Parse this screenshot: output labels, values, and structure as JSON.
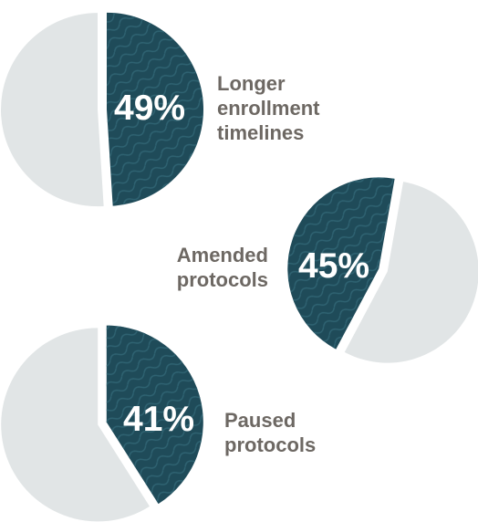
{
  "chart_data": {
    "type": "pie",
    "colors": {
      "accent": "#1f4b59",
      "accent_line": "#2f6372",
      "rest": "#e1e5e6",
      "label": "#6d6863"
    },
    "items": [
      {
        "value": 49,
        "value_label": "49%",
        "label": "Longer\nenrollment\ntimelines"
      },
      {
        "value": 45,
        "value_label": "45%",
        "label": "Amended\nprotocols"
      },
      {
        "value": 41,
        "value_label": "41%",
        "label": "Paused\nprotocols"
      }
    ]
  }
}
